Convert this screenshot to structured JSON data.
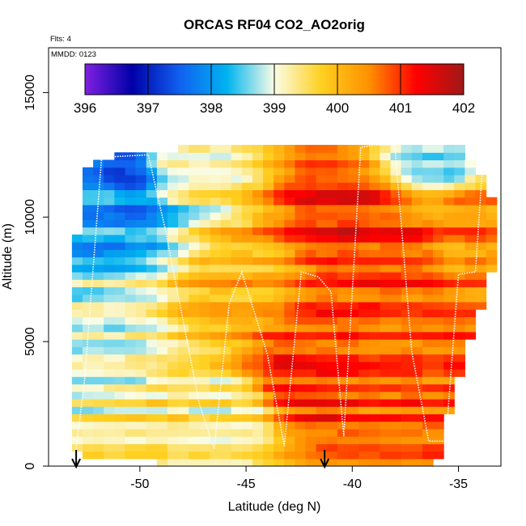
{
  "chart_data": {
    "type": "heatmap",
    "title": "ORCAS RF04 CO2_AO2orig",
    "flights_note": "Flts: 4",
    "date_note": "MMDD: 0123",
    "xlabel": "Latitude (deg N)",
    "ylabel": "Altitude (m)",
    "xlim": [
      -54.3,
      -33.0
    ],
    "ylim": [
      0,
      16800
    ],
    "x_ticks": [
      -50,
      -45,
      -40,
      -35
    ],
    "x_tick_labels": [
      "-50",
      "-45",
      "-40",
      "-35"
    ],
    "y_ticks": [
      0,
      5000,
      10000,
      15000
    ],
    "y_tick_labels": [
      "0",
      "5000",
      "10000",
      "15000"
    ],
    "colorbar": {
      "min": 396,
      "max": 402,
      "ticks": [
        396,
        397,
        398,
        399,
        400,
        401,
        402
      ],
      "tick_labels": [
        "396",
        "397",
        "398",
        "399",
        "400",
        "401",
        "402"
      ],
      "colors": [
        "#8020e0",
        "#0000a8",
        "#1060f0",
        "#00b4f0",
        "#fafde6",
        "#ffd020",
        "#ff9000",
        "#ff0000",
        "#a01818"
      ],
      "placement": "top-inside"
    },
    "arrows_x": [
      -53.0,
      -41.3
    ],
    "field_envelope": {
      "lat": [
        -53.0,
        -52.6,
        -51.6,
        -50.4,
        -49.2,
        -48.0,
        -46.8,
        -45.6,
        -44.4,
        -43.2,
        -42.0,
        -40.8,
        -39.6,
        -38.4,
        -37.2,
        -36.0,
        -34.8,
        -33.6,
        -33.3
      ],
      "alt_bottom": [
        600,
        350,
        250,
        200,
        150,
        100,
        80,
        50,
        50,
        50,
        60,
        50,
        50,
        50,
        50,
        50,
        4200,
        7000,
        8500
      ],
      "alt_top": [
        9000,
        12000,
        12400,
        12500,
        12700,
        12750,
        12800,
        12850,
        12900,
        12900,
        12950,
        12950,
        12950,
        12950,
        12950,
        12950,
        12950,
        11000,
        10500
      ]
    },
    "co2_field_anchors": [
      {
        "lat": -51.0,
        "alt": 11600,
        "co2": 397.6
      },
      {
        "lat": -52.0,
        "alt": 11000,
        "co2": 398.2
      },
      {
        "lat": -48.0,
        "alt": 12500,
        "co2": 399.3
      },
      {
        "lat": -36.0,
        "alt": 12600,
        "co2": 398.8
      },
      {
        "lat": -40.5,
        "alt": 10000,
        "co2": 401.2
      },
      {
        "lat": -38.0,
        "alt": 8800,
        "co2": 401.0
      },
      {
        "lat": -42.5,
        "alt": 3800,
        "co2": 401.1
      },
      {
        "lat": -41.5,
        "alt": 5200,
        "co2": 400.9
      },
      {
        "lat": -37.0,
        "alt": 4500,
        "co2": 400.8
      },
      {
        "lat": -52.0,
        "alt": 4500,
        "co2": 399.0
      },
      {
        "lat": -46.0,
        "alt": 2000,
        "co2": 399.3
      },
      {
        "lat": -50.0,
        "alt": 1200,
        "co2": 399.4
      },
      {
        "lat": -45.0,
        "alt": 7000,
        "co2": 400.1
      },
      {
        "lat": -34.5,
        "alt": 9500,
        "co2": 400.5
      }
    ],
    "flight_track": {
      "lat": [
        -53.0,
        -52.6,
        -51.8,
        -49.6,
        -48.8,
        -47.2,
        -46.5,
        -45.8,
        -45.2,
        -44.0,
        -43.2,
        -42.4,
        -41.6,
        -41.0,
        -40.4,
        -39.6,
        -39.0,
        -38.0,
        -37.2,
        -36.4,
        -35.6,
        -35.0,
        -34.2,
        -33.8
      ],
      "alt": [
        700,
        3500,
        12400,
        12500,
        9500,
        2500,
        700,
        6500,
        7800,
        4500,
        800,
        7800,
        7600,
        7000,
        1200,
        12800,
        12900,
        12900,
        4600,
        1000,
        1000,
        7700,
        7800,
        12900
      ]
    }
  }
}
